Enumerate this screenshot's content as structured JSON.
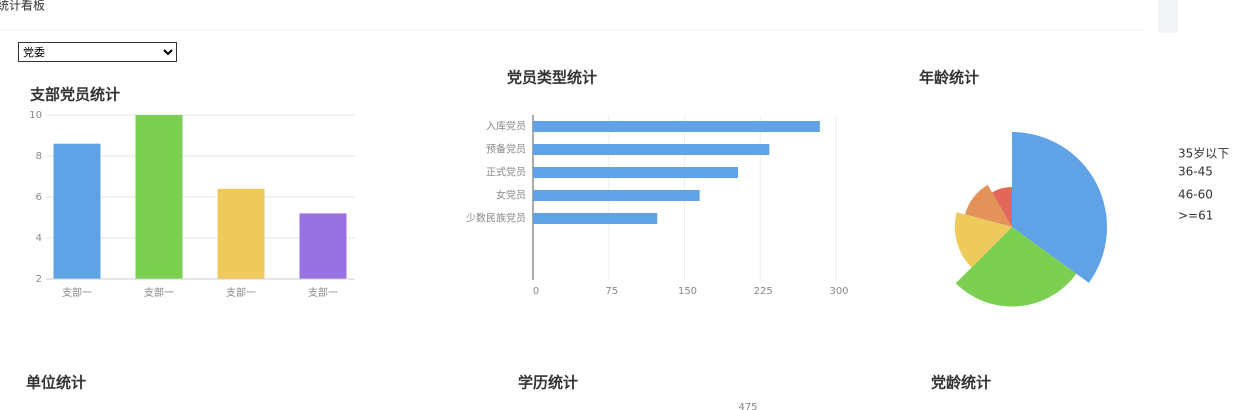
{
  "header": {
    "title": "统计看板"
  },
  "filter": {
    "selected": "党委"
  },
  "chart_data": [
    {
      "type": "bar",
      "title": "支部党员统计",
      "categories": [
        "支部一",
        "支部一",
        "支部一",
        "支部一"
      ],
      "values": [
        8.6,
        10,
        6.4,
        5.2
      ],
      "colors": [
        "#5fa3e6",
        "#7dcf51",
        "#eeca5c",
        "#9871e3"
      ],
      "ylim": [
        2,
        10
      ],
      "yticks": [
        2,
        4,
        6,
        8,
        10
      ],
      "grid": true
    },
    {
      "type": "hbar",
      "title": "党员类型统计",
      "categories": [
        "入库党员",
        "预备党员",
        "正式党员",
        "女党员",
        "少数民族党员"
      ],
      "values": [
        284,
        234,
        203,
        165,
        123
      ],
      "color": "#5fa3e6",
      "xlim": [
        0,
        300
      ],
      "xticks": [
        0,
        75,
        150,
        225,
        300
      ],
      "grid": true
    },
    {
      "type": "pie",
      "rose": true,
      "title": "年龄统计",
      "categories": [
        "35岁以下",
        "36-45",
        "46-60",
        ">=61",
        null
      ],
      "values": [
        42,
        33,
        20,
        15,
        10
      ],
      "colors": [
        "#5fa3e6",
        "#7dcf51",
        "#eeca5c",
        "#e3935a",
        "#e2665a"
      ]
    }
  ],
  "sections": [
    {
      "title": "单位统计"
    },
    {
      "title": "学历统计",
      "label": "475"
    },
    {
      "title": "党龄统计"
    }
  ]
}
